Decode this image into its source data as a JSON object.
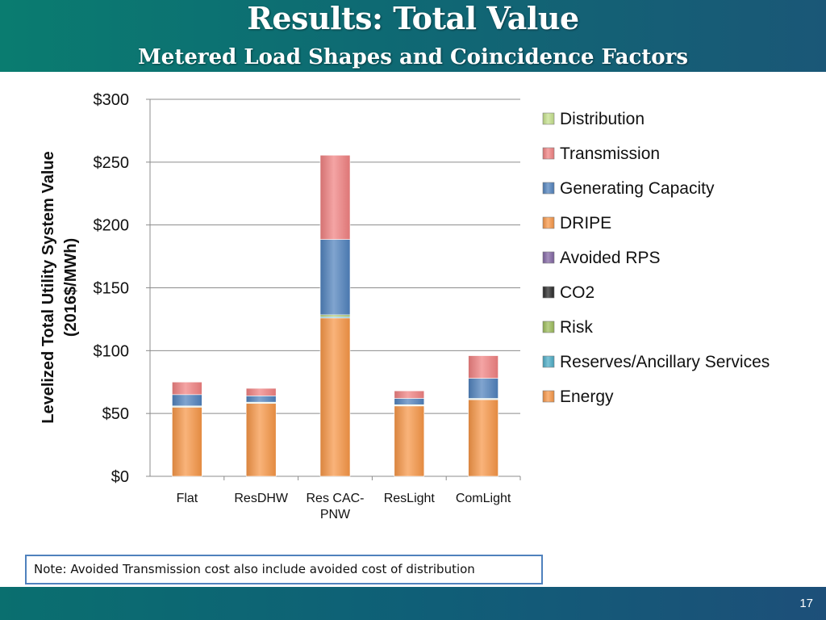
{
  "slide": {
    "title": "Results: Total Value",
    "subtitle": "Metered Load Shapes and Coincidence Factors",
    "note": "Note: Avoided Transmission cost also include avoided cost of distribution",
    "page_number": "17"
  },
  "chart_data": {
    "type": "bar",
    "stacked": true,
    "title": "",
    "xlabel": "",
    "ylabel": "Levelized Total Utility System Value (2016$/MWh)",
    "ylim": [
      0,
      300
    ],
    "yticks": [
      0,
      50,
      100,
      150,
      200,
      250,
      300
    ],
    "ytick_labels": [
      "$0",
      "$50",
      "$100",
      "$150",
      "$200",
      "$250",
      "$300"
    ],
    "grid": true,
    "legend_position": "right",
    "categories": [
      "Flat",
      "ResDHW",
      "Res CAC-PNW",
      "ResLight",
      "ComLight"
    ],
    "series": [
      {
        "name": "Energy",
        "color": "#f79646",
        "values": [
          55,
          58,
          126,
          56,
          61
        ]
      },
      {
        "name": "Reserves/Ancillary Services",
        "color": "#4bacc6",
        "values": [
          0.5,
          0.5,
          1,
          0.5,
          0.5
        ]
      },
      {
        "name": "Risk",
        "color": "#9bbb59",
        "values": [
          0.5,
          0.5,
          1.5,
          0.5,
          0.5
        ]
      },
      {
        "name": "CO2",
        "color": "#262626",
        "values": [
          0,
          0,
          0,
          0,
          0
        ]
      },
      {
        "name": "Avoided RPS",
        "color": "#8064a2",
        "values": [
          0,
          0,
          0,
          0,
          0
        ]
      },
      {
        "name": "DRIPE",
        "color": "#f79646",
        "values": [
          0,
          0,
          0,
          0,
          0
        ]
      },
      {
        "name": "Generating Capacity",
        "color": "#4f81bd",
        "values": [
          9,
          5,
          60,
          5,
          16
        ]
      },
      {
        "name": "Transmission",
        "color": "#f08080",
        "values": [
          10,
          6,
          67,
          6,
          18
        ]
      },
      {
        "name": "Distribution",
        "color": "#c4e08a",
        "values": [
          0,
          0,
          0,
          0,
          0
        ]
      }
    ],
    "legend_order": [
      "Distribution",
      "Transmission",
      "Generating Capacity",
      "DRIPE",
      "Avoided RPS",
      "CO2",
      "Risk",
      "Reserves/Ancillary Services",
      "Energy"
    ]
  }
}
